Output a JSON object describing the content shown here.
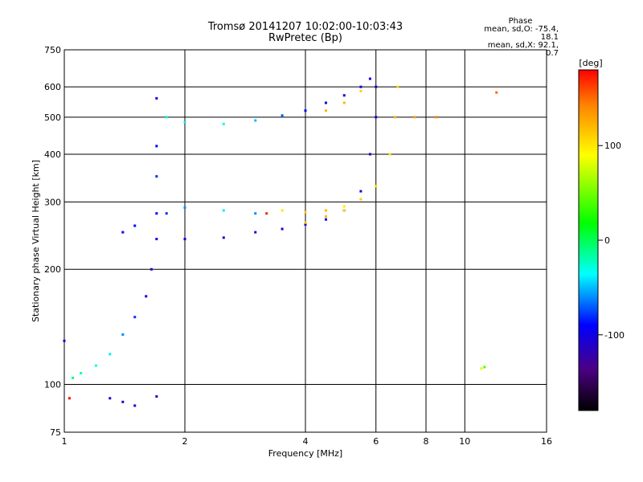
{
  "chart_data": {
    "type": "scatter",
    "title": "Tromsø 20141207 10:02:00-10:03:43",
    "subtitle": "RwPretec (Bp)",
    "xlabel": "Frequency [MHz]",
    "ylabel": "Stationary phase Virtual Height [km]",
    "x_scale": "log",
    "y_scale": "log",
    "xlim": [
      1,
      16
    ],
    "ylim": [
      75,
      750
    ],
    "x_ticks": [
      1,
      2,
      4,
      6,
      8,
      10,
      16
    ],
    "y_ticks": [
      75,
      100,
      200,
      300,
      400,
      500,
      600,
      750
    ],
    "grid": true,
    "stats": {
      "heading": "Phase",
      "line_o": "mean, sd,O: -75.4, 18.1",
      "line_x": "mean, sd,X:  92.1, 20.7"
    },
    "colorbar": {
      "label": "[deg]",
      "ticks": [
        100,
        0,
        -100
      ],
      "range": [
        -180,
        180
      ]
    },
    "series": [
      {
        "values": [
          {
            "x": 1.0,
            "y": 130,
            "phase": -100
          },
          {
            "x": 1.05,
            "y": 104,
            "phase": -10
          },
          {
            "x": 1.1,
            "y": 107,
            "phase": -20
          },
          {
            "x": 1.2,
            "y": 112,
            "phase": -30
          },
          {
            "x": 1.3,
            "y": 120,
            "phase": -40
          },
          {
            "x": 1.4,
            "y": 135,
            "phase": -60
          },
          {
            "x": 1.5,
            "y": 150,
            "phase": -80
          },
          {
            "x": 1.6,
            "y": 170,
            "phase": -100
          },
          {
            "x": 1.65,
            "y": 200,
            "phase": -110
          },
          {
            "x": 1.7,
            "y": 240,
            "phase": -100
          },
          {
            "x": 1.7,
            "y": 280,
            "phase": -90
          },
          {
            "x": 1.7,
            "y": 350,
            "phase": -80
          },
          {
            "x": 1.7,
            "y": 420,
            "phase": -90
          },
          {
            "x": 1.7,
            "y": 560,
            "phase": -100
          },
          {
            "x": 1.8,
            "y": 500,
            "phase": -30
          },
          {
            "x": 2.0,
            "y": 485,
            "phase": -40
          },
          {
            "x": 2.5,
            "y": 480,
            "phase": -30
          },
          {
            "x": 3.0,
            "y": 490,
            "phase": -50
          },
          {
            "x": 3.5,
            "y": 505,
            "phase": -70
          },
          {
            "x": 4.0,
            "y": 520,
            "phase": -90
          },
          {
            "x": 4.5,
            "y": 545,
            "phase": -100
          },
          {
            "x": 5.0,
            "y": 570,
            "phase": -110
          },
          {
            "x": 5.5,
            "y": 600,
            "phase": -100
          },
          {
            "x": 5.8,
            "y": 630,
            "phase": -100
          },
          {
            "x": 4.5,
            "y": 520,
            "phase": 120
          },
          {
            "x": 5.0,
            "y": 545,
            "phase": 120
          },
          {
            "x": 5.5,
            "y": 585,
            "phase": 110
          },
          {
            "x": 1.4,
            "y": 250,
            "phase": -100
          },
          {
            "x": 1.5,
            "y": 260,
            "phase": -90
          },
          {
            "x": 1.8,
            "y": 280,
            "phase": -80
          },
          {
            "x": 2.0,
            "y": 290,
            "phase": -60
          },
          {
            "x": 2.5,
            "y": 285,
            "phase": -40
          },
          {
            "x": 3.0,
            "y": 280,
            "phase": -60
          },
          {
            "x": 3.2,
            "y": 280,
            "phase": 170
          },
          {
            "x": 3.5,
            "y": 285,
            "phase": 100
          },
          {
            "x": 4.0,
            "y": 282,
            "phase": 110
          },
          {
            "x": 4.5,
            "y": 285,
            "phase": 120
          },
          {
            "x": 5.0,
            "y": 292,
            "phase": 100
          },
          {
            "x": 2.0,
            "y": 240,
            "phase": -100
          },
          {
            "x": 2.5,
            "y": 242,
            "phase": -110
          },
          {
            "x": 3.0,
            "y": 250,
            "phase": -110
          },
          {
            "x": 3.5,
            "y": 255,
            "phase": -100
          },
          {
            "x": 4.0,
            "y": 262,
            "phase": -100
          },
          {
            "x": 4.5,
            "y": 270,
            "phase": -100
          },
          {
            "x": 5.0,
            "y": 285,
            "phase": -110
          },
          {
            "x": 5.5,
            "y": 320,
            "phase": -110
          },
          {
            "x": 5.8,
            "y": 400,
            "phase": -110
          },
          {
            "x": 6.0,
            "y": 500,
            "phase": -110
          },
          {
            "x": 6.0,
            "y": 600,
            "phase": -110
          },
          {
            "x": 4.0,
            "y": 265,
            "phase": 110
          },
          {
            "x": 4.5,
            "y": 275,
            "phase": 120
          },
          {
            "x": 5.0,
            "y": 285,
            "phase": 110
          },
          {
            "x": 5.5,
            "y": 305,
            "phase": 110
          },
          {
            "x": 6.0,
            "y": 330,
            "phase": 100
          },
          {
            "x": 6.5,
            "y": 400,
            "phase": 100
          },
          {
            "x": 6.7,
            "y": 500,
            "phase": 120
          },
          {
            "x": 6.8,
            "y": 600,
            "phase": 110
          },
          {
            "x": 1.3,
            "y": 92,
            "phase": -110
          },
          {
            "x": 1.4,
            "y": 90,
            "phase": -110
          },
          {
            "x": 1.5,
            "y": 88,
            "phase": -100
          },
          {
            "x": 1.7,
            "y": 93,
            "phase": -110
          },
          {
            "x": 1.03,
            "y": 92,
            "phase": 180
          },
          {
            "x": 7.5,
            "y": 500,
            "phase": 130
          },
          {
            "x": 8.5,
            "y": 500,
            "phase": 140
          },
          {
            "x": 11.0,
            "y": 110,
            "phase": 80
          },
          {
            "x": 11.2,
            "y": 111,
            "phase": 40
          },
          {
            "x": 12.0,
            "y": 580,
            "phase": 150
          }
        ]
      }
    ]
  }
}
